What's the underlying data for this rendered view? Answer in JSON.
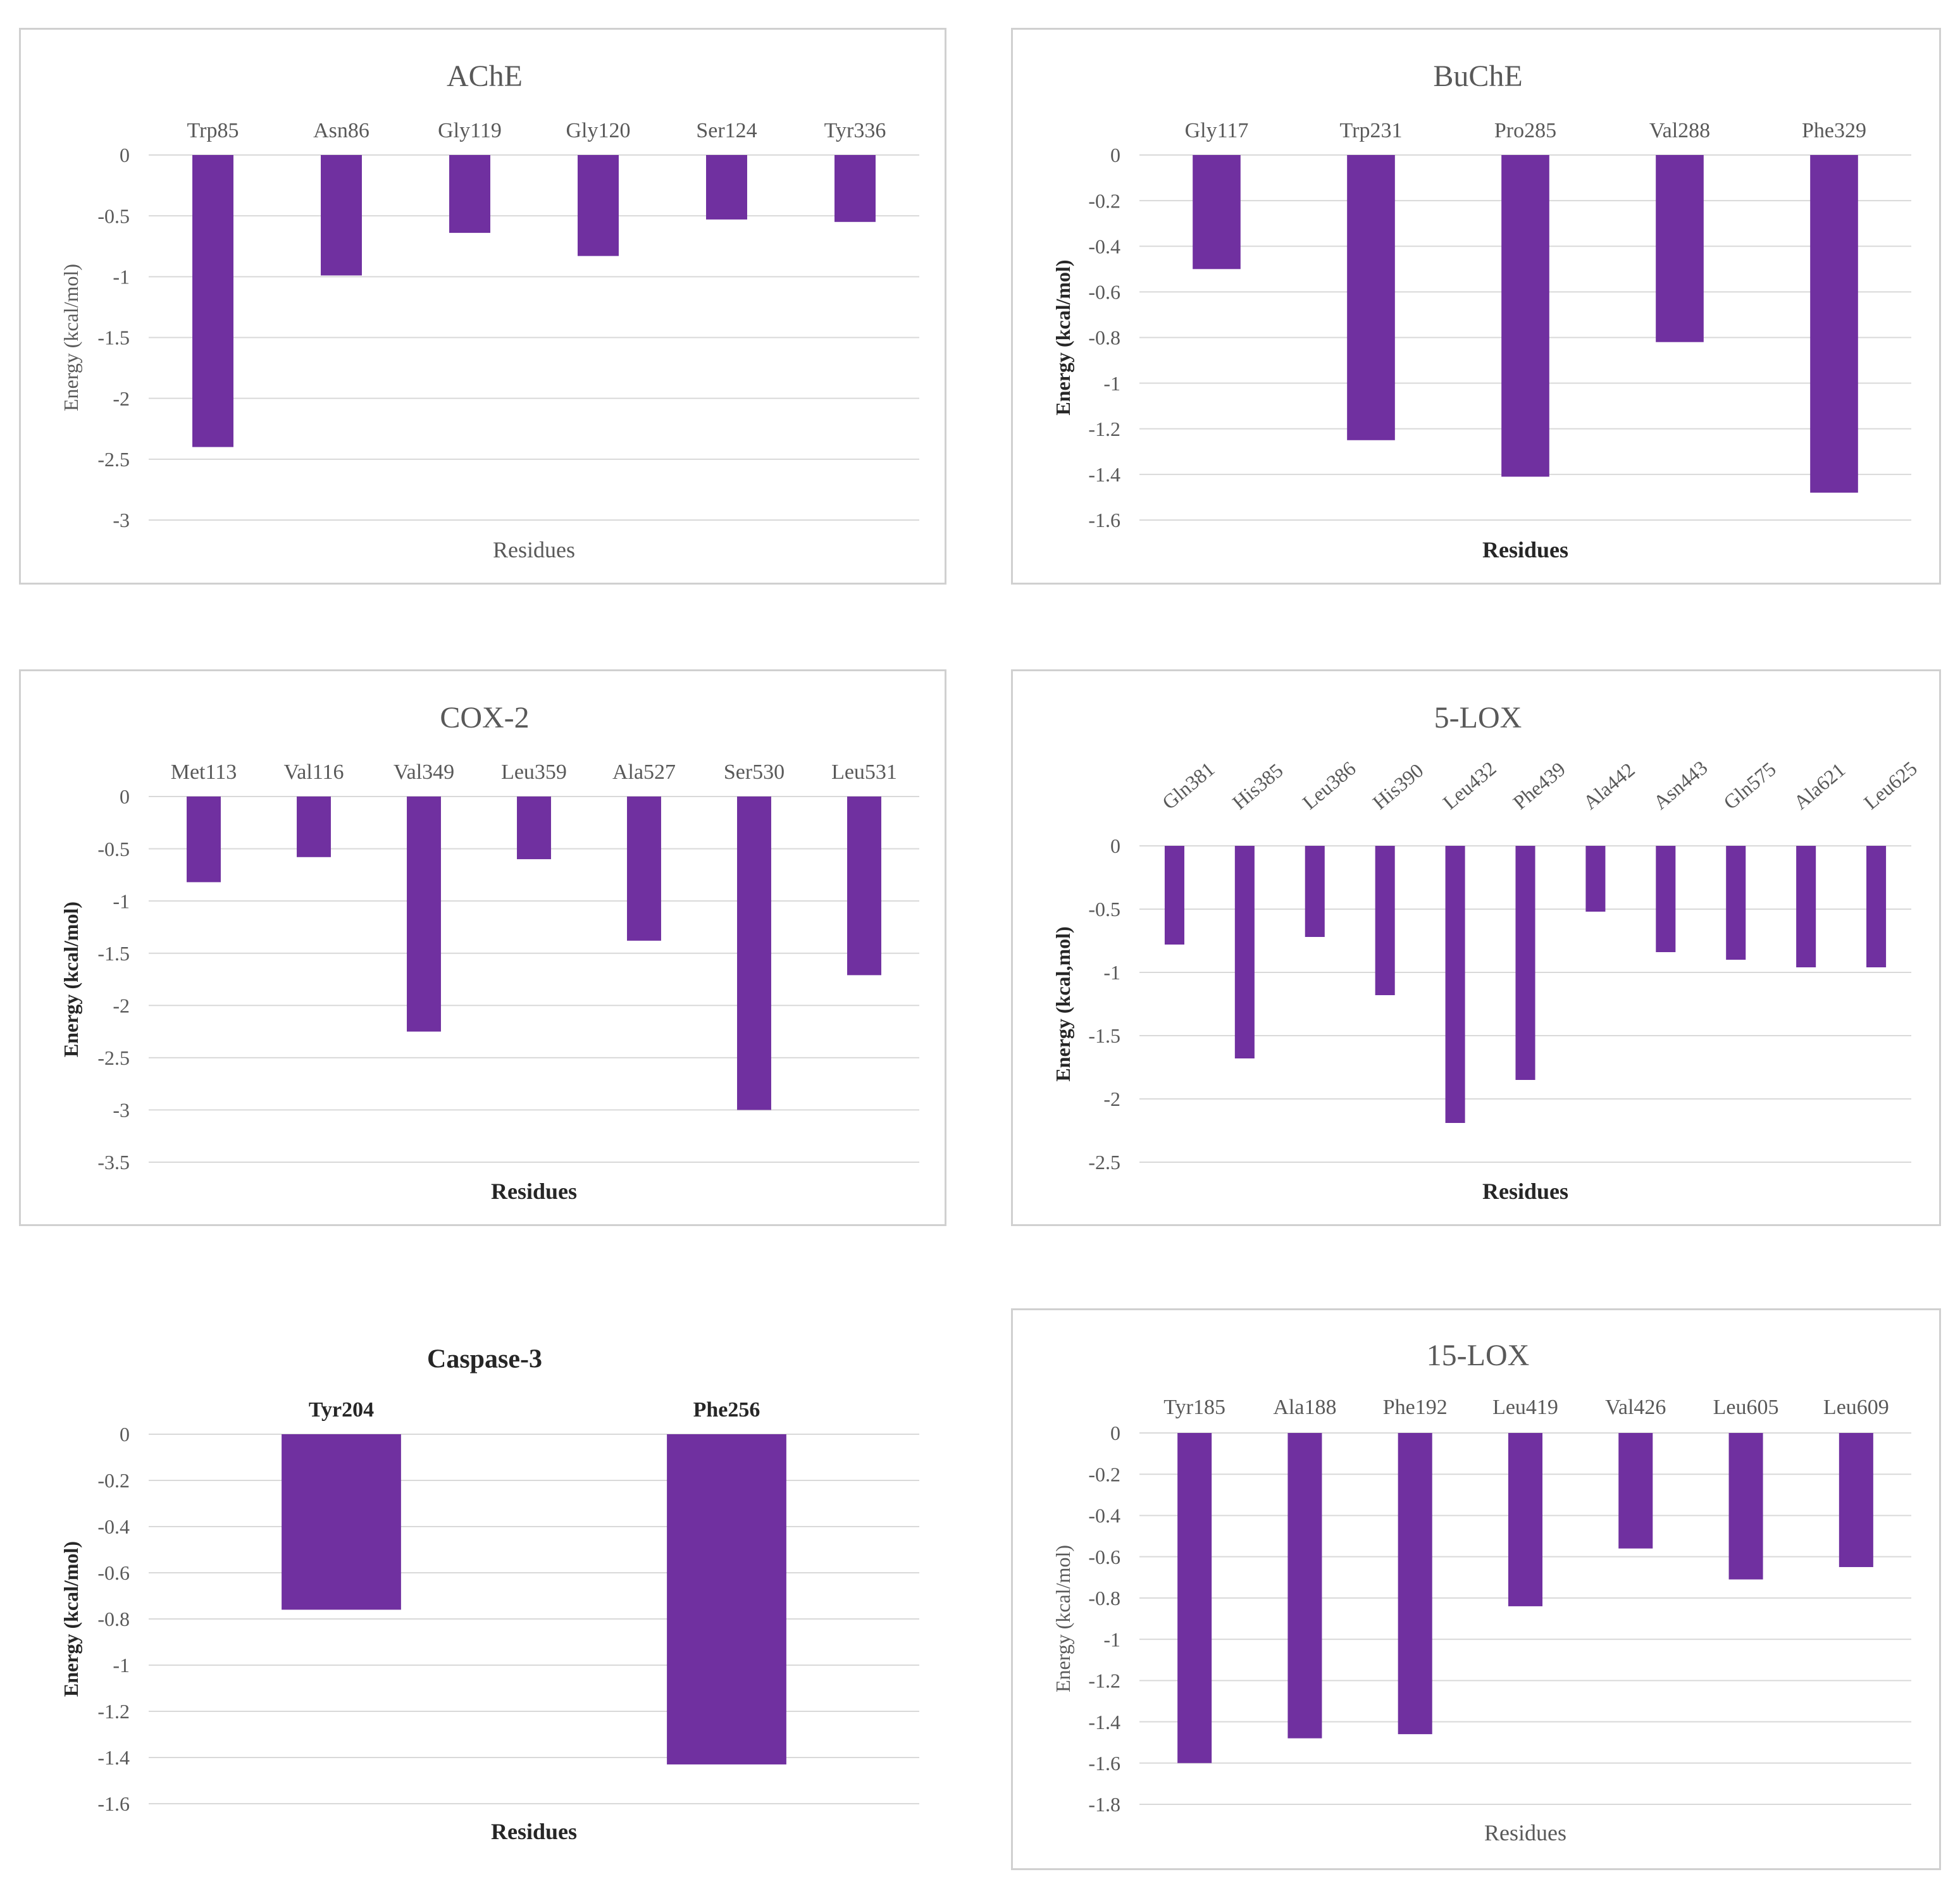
{
  "colors": {
    "bar": "#7030a0",
    "grid": "#d9d9d9",
    "text": "#595959",
    "border": "#d0d0d0"
  },
  "chart_data": [
    {
      "type": "bar",
      "title": "AChE",
      "categories": [
        "Trp85",
        "Asn86",
        "Gly119",
        "Gly120",
        "Ser124",
        "Tyr336"
      ],
      "values": [
        -2.4,
        -0.99,
        -0.64,
        -0.83,
        -0.53,
        -0.55
      ],
      "xlabel": "Residues",
      "ylabel": "Energy (kcal/mol)",
      "ylim": [
        -3,
        0
      ],
      "yticks": [
        "0",
        "-0.5",
        "-1",
        "-1.5",
        "-2",
        "-2.5",
        "-3"
      ],
      "grid": true
    },
    {
      "type": "bar",
      "title": "BuChE",
      "categories": [
        "Gly117",
        "Trp231",
        "Pro285",
        "Val288",
        "Phe329"
      ],
      "values": [
        -0.5,
        -1.25,
        -1.41,
        -0.82,
        -1.48
      ],
      "xlabel": "Residues",
      "ylabel": "Energy (kcal/mol)",
      "ylim": [
        -1.6,
        0
      ],
      "yticks": [
        "0",
        "-0.2",
        "-0.4",
        "-0.6",
        "-0.8",
        "-1",
        "-1.2",
        "-1.4",
        "-1.6"
      ],
      "grid": true
    },
    {
      "type": "bar",
      "title": "COX-2",
      "categories": [
        "Met113",
        "Val116",
        "Val349",
        "Leu359",
        "Ala527",
        "Ser530",
        "Leu531"
      ],
      "values": [
        -0.82,
        -0.58,
        -2.25,
        -0.6,
        -1.38,
        -3.0,
        -1.71
      ],
      "xlabel": "Residues",
      "ylabel": "Energy (kcal/mol)",
      "ylim": [
        -3.5,
        0
      ],
      "yticks": [
        "0",
        "-0.5",
        "-1",
        "-1.5",
        "-2",
        "-2.5",
        "-3",
        "-3.5"
      ],
      "grid": true
    },
    {
      "type": "bar",
      "title": "5-LOX",
      "categories": [
        "Gln381",
        "His385",
        "Leu386",
        "His390",
        "Leu432",
        "Phe439",
        "Ala442",
        "Asn443",
        "Gln575",
        "Ala621",
        "Leu625"
      ],
      "values": [
        -0.78,
        -1.68,
        -0.72,
        -1.18,
        -2.19,
        -1.85,
        -0.52,
        -0.84,
        -0.9,
        -0.96,
        -0.96
      ],
      "xlabel": "Residues",
      "ylabel": "Energy (kcal,mol)",
      "ylim": [
        -2.5,
        0
      ],
      "yticks": [
        "0",
        "-0.5",
        "-1",
        "-1.5",
        "-2",
        "-2.5"
      ],
      "grid": true
    },
    {
      "type": "bar",
      "title": "Caspase-3",
      "categories": [
        "Tyr204",
        "Phe256"
      ],
      "values": [
        -0.76,
        -1.43
      ],
      "xlabel": "Residues",
      "ylabel": "Energy (kcal/mol)",
      "ylim": [
        -1.6,
        0
      ],
      "yticks": [
        "0",
        "-0.2",
        "-0.4",
        "-0.6",
        "-0.8",
        "-1",
        "-1.2",
        "-1.4",
        "-1.6"
      ],
      "grid": true
    },
    {
      "type": "bar",
      "title": "15-LOX",
      "categories": [
        "Tyr185",
        "Ala188",
        "Phe192",
        "Leu419",
        "Val426",
        "Leu605",
        "Leu609"
      ],
      "values": [
        -1.6,
        -1.48,
        -1.46,
        -0.84,
        -0.56,
        -0.71,
        -0.65
      ],
      "xlabel": "Residues",
      "ylabel": "Energy (kcal/mol)",
      "ylim": [
        -1.8,
        0
      ],
      "yticks": [
        "0",
        "-0.2",
        "-0.4",
        "-0.6",
        "-0.8",
        "-1",
        "-1.2",
        "-1.4",
        "-1.6",
        "-1.8"
      ],
      "grid": true
    }
  ]
}
